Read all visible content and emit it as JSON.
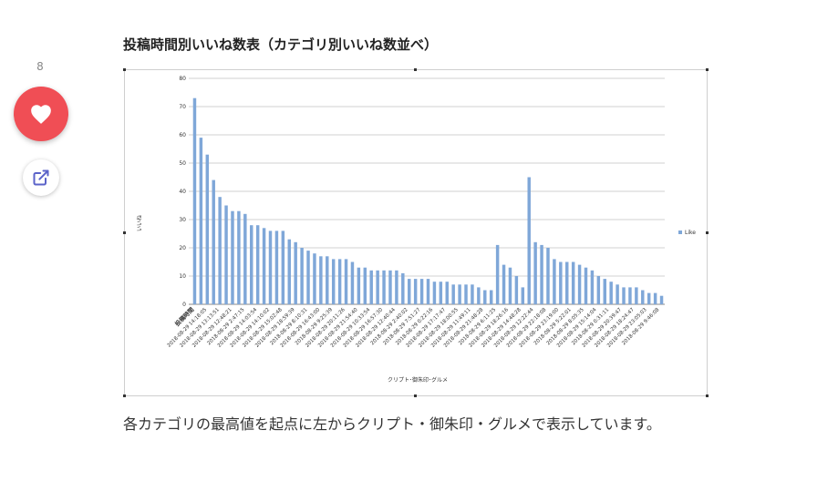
{
  "sidebar": {
    "like_count": "8",
    "like_icon": "heart-icon",
    "share_icon": "external-link-icon",
    "like_color": "#f04e55",
    "share_icon_color": "#5b63c9"
  },
  "article": {
    "heading": "投稿時間別いいね数表（カテゴリ別いいね数並べ）",
    "body": "各カテゴリの最高値を起点に左からクリプト・御朱印・グルメで表示しています。"
  },
  "chart_data": {
    "type": "bar",
    "title": "",
    "xlabel": "クリプト･御朱印･グルメ",
    "ylabel": "いいね",
    "ylim": [
      0,
      80
    ],
    "yticks": [
      0,
      10,
      20,
      30,
      40,
      50,
      60,
      70,
      80
    ],
    "grid": true,
    "legend_position": "right",
    "bar_color": "#7fa7d8",
    "series": [
      {
        "name": "Like",
        "values": [
          73,
          59,
          53,
          44,
          38,
          35,
          33,
          33,
          32,
          28,
          28,
          27,
          26,
          26,
          26,
          23,
          22,
          20,
          19,
          18,
          17,
          17,
          16,
          16,
          16,
          15,
          13,
          13,
          12,
          12,
          12,
          12,
          12,
          11,
          9,
          9,
          9,
          9,
          8,
          8,
          8,
          7,
          7,
          7,
          7,
          6,
          5,
          5,
          21,
          14,
          13,
          10,
          6,
          45,
          22,
          21,
          20,
          16,
          15,
          15,
          15,
          14,
          13,
          12,
          10,
          9,
          8,
          7,
          6,
          6,
          6,
          5,
          4,
          4,
          3
        ]
      }
    ],
    "category_labels": [
      "投稿時間",
      "2018-08-29 14:18:05",
      "2018-08-29 13:13:51",
      "2018-08-29 12:48:21",
      "2018-08-29 2:47:15",
      "2018-08-29 14:03:54",
      "2018-08-29 14:10:02",
      "2018-08-29 15:02:48",
      "2018-08-29 18:59:39",
      "2018-08-29 8:10:31",
      "2018-08-29 16:43:00",
      "2018-08-29 9:25:39",
      "2018-08-29 20:11:26",
      "2018-08-29 21:54:40",
      "2018-08-29 10:33:54",
      "2018-08-29 16:57:30",
      "2018-08-29 12:40:44",
      "2018-08-29 2:40:02",
      "2018-08-29 7:51:27",
      "2018-08-29 0:22:16",
      "2018-08-29 17:17:47",
      "2018-08-29 18:00:55",
      "2018-08-29 11:49:11",
      "2018-08-29 21:48:28",
      "2018-08-29 6:11:25",
      "2018-08-29 18:26:16",
      "2018-08-29 14:48:28",
      "2018-08-29 12:22:44",
      "2018-08-29 22:18:08",
      "2018-08-29 23:19:00",
      "2018-08-29 5:22:01",
      "2018-08-29 8:05:35",
      "2018-08-29 15:14:04",
      "2018-08-29 0:31:11",
      "2018-08-29 20:39:47",
      "2018-08-29 18:24:47",
      "2018-08-29 23:05:03",
      "2018-08-29 9:46:08"
    ]
  }
}
